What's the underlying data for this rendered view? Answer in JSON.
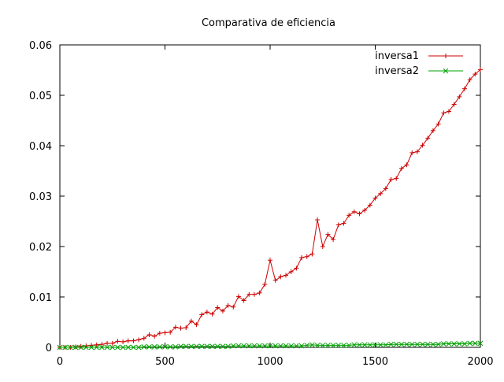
{
  "chart_data": {
    "type": "line",
    "title": "Comparativa de eficiencia",
    "xlabel": "",
    "ylabel": "",
    "xlim": [
      0,
      2000
    ],
    "ylim": [
      0,
      0.06
    ],
    "x_ticks": [
      "0",
      "500",
      "1000",
      "1500",
      "2000"
    ],
    "y_ticks": [
      "0",
      "0.01",
      "0.02",
      "0.03",
      "0.04",
      "0.05",
      "0.06"
    ],
    "grid": false,
    "legend_position": "top-right",
    "series": [
      {
        "name": "inversa1",
        "color": "#cc0000",
        "marker": "plus",
        "x": [
          0,
          25,
          50,
          75,
          100,
          125,
          150,
          175,
          200,
          225,
          250,
          275,
          300,
          325,
          350,
          375,
          400,
          425,
          450,
          475,
          500,
          525,
          550,
          575,
          600,
          625,
          650,
          675,
          700,
          725,
          750,
          775,
          800,
          825,
          850,
          875,
          900,
          925,
          950,
          975,
          1000,
          1025,
          1050,
          1075,
          1100,
          1125,
          1150,
          1175,
          1200,
          1225,
          1250,
          1275,
          1300,
          1325,
          1350,
          1375,
          1400,
          1425,
          1450,
          1475,
          1500,
          1525,
          1550,
          1575,
          1600,
          1625,
          1650,
          1675,
          1700,
          1725,
          1750,
          1775,
          1800,
          1825,
          1850,
          1875,
          1900,
          1925,
          1950,
          1975,
          2000
        ],
        "values": [
          0,
          0,
          0,
          0.0001,
          0.0002,
          0.0003,
          0.0004,
          0.0005,
          0.0006,
          0.0008,
          0.0008,
          0.0012,
          0.0011,
          0.0013,
          0.0013,
          0.0015,
          0.0018,
          0.0025,
          0.0022,
          0.0028,
          0.0029,
          0.003,
          0.004,
          0.0038,
          0.0039,
          0.0052,
          0.0045,
          0.0065,
          0.007,
          0.0066,
          0.0079,
          0.0072,
          0.0083,
          0.008,
          0.0101,
          0.0093,
          0.0105,
          0.0105,
          0.0108,
          0.0125,
          0.0173,
          0.0133,
          0.014,
          0.0143,
          0.015,
          0.0157,
          0.0178,
          0.018,
          0.0185,
          0.0253,
          0.02,
          0.0224,
          0.0214,
          0.0243,
          0.0246,
          0.0262,
          0.0269,
          0.0265,
          0.0272,
          0.0282,
          0.0296,
          0.0305,
          0.0315,
          0.0333,
          0.0335,
          0.0355,
          0.0362,
          0.0386,
          0.0388,
          0.0401,
          0.0415,
          0.043,
          0.0443,
          0.0465,
          0.0468,
          0.0482,
          0.0497,
          0.0513,
          0.0531,
          0.0542,
          0.0551
        ]
      },
      {
        "name": "inversa2",
        "color": "#00a000",
        "marker": "cross",
        "x": [
          0,
          25,
          50,
          75,
          100,
          125,
          150,
          175,
          200,
          225,
          250,
          275,
          300,
          325,
          350,
          375,
          400,
          425,
          450,
          475,
          500,
          525,
          550,
          575,
          600,
          625,
          650,
          675,
          700,
          725,
          750,
          775,
          800,
          825,
          850,
          875,
          900,
          925,
          950,
          975,
          1000,
          1025,
          1050,
          1075,
          1100,
          1125,
          1150,
          1175,
          1200,
          1225,
          1250,
          1275,
          1300,
          1325,
          1350,
          1375,
          1400,
          1425,
          1450,
          1475,
          1500,
          1525,
          1550,
          1575,
          1600,
          1625,
          1650,
          1675,
          1700,
          1725,
          1750,
          1775,
          1800,
          1825,
          1850,
          1875,
          1900,
          1925,
          1950,
          1975,
          2000
        ],
        "values": [
          0,
          0,
          0,
          0,
          0,
          0,
          0,
          0,
          0,
          0,
          0,
          0,
          0,
          0,
          0,
          0,
          0.0001,
          0.0001,
          0.0001,
          0.0001,
          0.0001,
          0.0001,
          0.0001,
          0.0002,
          0.0002,
          0.0002,
          0.0002,
          0.0002,
          0.0002,
          0.0002,
          0.0002,
          0.0002,
          0.0002,
          0.0003,
          0.0003,
          0.0003,
          0.0003,
          0.0003,
          0.0003,
          0.0003,
          0.0003,
          0.0003,
          0.0003,
          0.0003,
          0.0003,
          0.0003,
          0.0003,
          0.0004,
          0.0005,
          0.0004,
          0.0004,
          0.0004,
          0.0004,
          0.0004,
          0.0004,
          0.0004,
          0.0005,
          0.0005,
          0.0005,
          0.0005,
          0.0005,
          0.0005,
          0.0005,
          0.0006,
          0.0006,
          0.0006,
          0.0006,
          0.0006,
          0.0006,
          0.0006,
          0.0006,
          0.0006,
          0.0006,
          0.0007,
          0.0007,
          0.0007,
          0.0007,
          0.0007,
          0.0008,
          0.0008,
          0.0008
        ]
      }
    ]
  }
}
